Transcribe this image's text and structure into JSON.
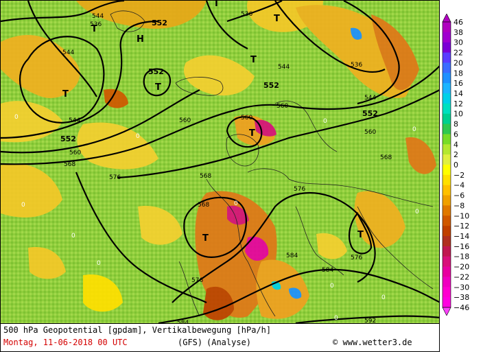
{
  "map": {
    "contour_labels": [
      "552",
      "536",
      "544",
      "552",
      "544",
      "536",
      "544",
      "552",
      "560",
      "560",
      "568",
      "552",
      "560",
      "568",
      "576",
      "568",
      "560",
      "544",
      "536",
      "544",
      "552",
      "560",
      "568",
      "576",
      "584",
      "576",
      "576",
      "584",
      "592",
      "584"
    ],
    "pressure_centers": [
      "T",
      "T",
      "H",
      "T",
      "T",
      "T",
      "T",
      "T",
      "T",
      "T"
    ],
    "zero_labels": [
      "0",
      "0",
      "0",
      "0",
      "0",
      "0",
      "0",
      "0",
      "0",
      "0",
      "0",
      "0"
    ]
  },
  "legend": {
    "labels": [
      "46",
      "38",
      "30",
      "22",
      "20",
      "18",
      "16",
      "14",
      "12",
      "10",
      "8",
      "6",
      "4",
      "2",
      "0",
      "−2",
      "−4",
      "−6",
      "−8",
      "−10",
      "−12",
      "−14",
      "−16",
      "−18",
      "−20",
      "−22",
      "−30",
      "−38",
      "−46"
    ],
    "colors": [
      "#b000c0",
      "#a000d0",
      "#7b00d6",
      "#5a3cff",
      "#3a6cff",
      "#1e90ff",
      "#1cb4ff",
      "#00d0e8",
      "#00e0c0",
      "#00d090",
      "#30c850",
      "#78dc28",
      "#b4e830",
      "#e0f040",
      "#ffff00",
      "#ffe000",
      "#ffc000",
      "#f0a000",
      "#e07800",
      "#d05800",
      "#c04000",
      "#b03020",
      "#c01850",
      "#d8107a",
      "#e800a0",
      "#f000c0",
      "#ff00d0",
      "#ff00e0",
      "#ff40ff"
    ]
  },
  "footer": {
    "line1": "500 hPa Geopotential [gpdam], Vertikalbewegung [hPa/h]",
    "date": "Montag, 11-06-2018  00 UTC",
    "model": "(GFS)",
    "analysis": "(Analyse)",
    "copyright": "© www.wetter3.de"
  }
}
